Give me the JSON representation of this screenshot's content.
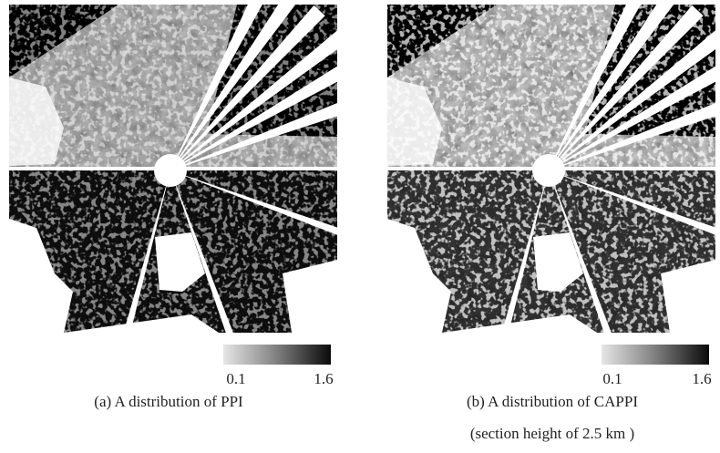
{
  "panels": [
    {
      "caption": [
        "(a) A distribution of PPI"
      ],
      "colorbar": {
        "min_label": "0.1",
        "max_label": "1.6"
      }
    },
    {
      "caption": [
        "(b) A distribution of CAPPI",
        "(section height of 2.5 km )"
      ],
      "colorbar": {
        "min_label": "0.1",
        "max_label": "1.6"
      }
    }
  ]
}
